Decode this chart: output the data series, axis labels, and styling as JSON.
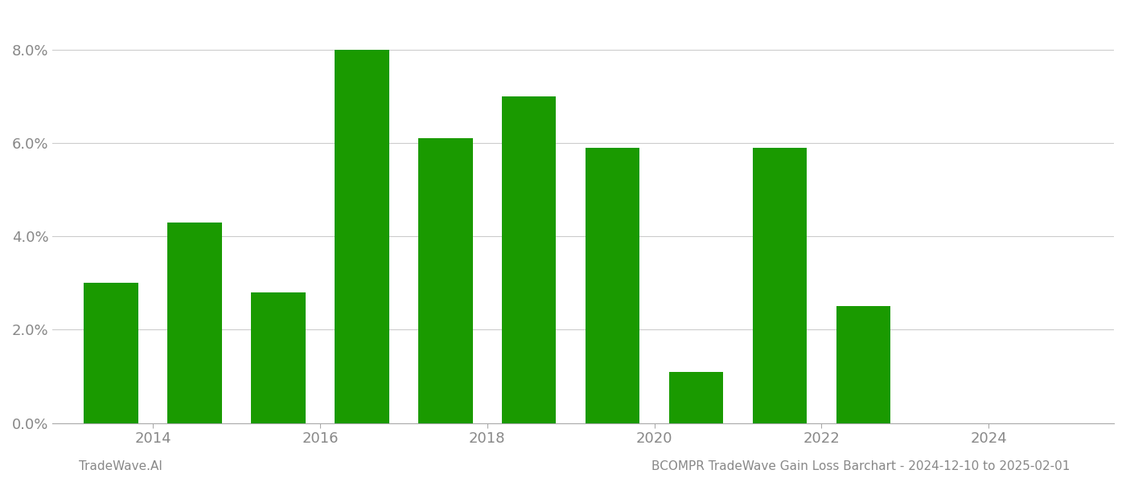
{
  "bar_years": [
    2013,
    2014,
    2015,
    2016,
    2017,
    2018,
    2019,
    2020,
    2021,
    2022,
    2023
  ],
  "bar_values": [
    0.03,
    0.043,
    0.028,
    0.08,
    0.061,
    0.07,
    0.059,
    0.011,
    0.059,
    0.025,
    0.0
  ],
  "bar_color": "#1a9a00",
  "background_color": "#ffffff",
  "grid_color": "#cccccc",
  "axis_label_color": "#888888",
  "yticks": [
    0.0,
    0.02,
    0.04,
    0.06,
    0.08
  ],
  "ytick_labels": [
    "0.0%",
    "2.0%",
    "4.0%",
    "6.0%",
    "8.0%"
  ],
  "xtick_positions": [
    2013.5,
    2015.5,
    2017.5,
    2019.5,
    2021.5,
    2023.5
  ],
  "xtick_labels": [
    "2014",
    "2016",
    "2018",
    "2020",
    "2022",
    "2024"
  ],
  "footer_left": "TradeWave.AI",
  "footer_right": "BCOMPR TradeWave Gain Loss Barchart - 2024-12-10 to 2025-02-01",
  "footer_color": "#888888",
  "xlim": [
    2012.3,
    2025.0
  ],
  "ylim": [
    0.0,
    0.088
  ],
  "bar_width": 0.65
}
